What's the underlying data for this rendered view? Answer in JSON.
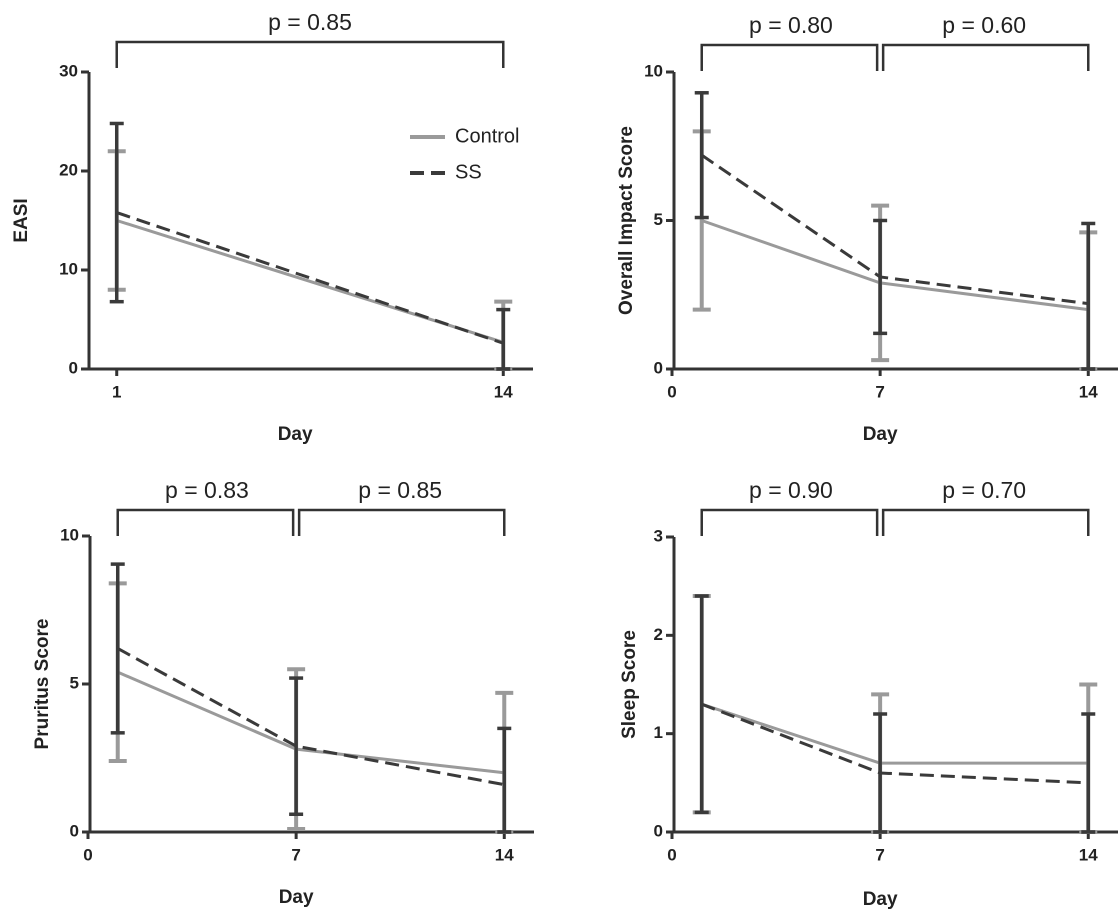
{
  "chart_data": [
    {
      "type": "line",
      "xlabel": "Day",
      "ylabel": "EASI",
      "xlim": [
        0,
        15
      ],
      "ylim": [
        0,
        30
      ],
      "xticks": [
        1,
        14
      ],
      "yticks": [
        0,
        10,
        20,
        30
      ],
      "legend": "upper right",
      "annotations": [
        {
          "text": "p = 0.85",
          "x": [
            1,
            14
          ]
        }
      ],
      "series": [
        {
          "name": "Control",
          "color": "#9a9a9a",
          "dashed": false,
          "x": [
            1,
            14
          ],
          "values": [
            15,
            2.7
          ],
          "errors": [
            7,
            4.1
          ]
        },
        {
          "name": "SS",
          "color": "#3a3a3a",
          "dashed": true,
          "x": [
            1,
            14
          ],
          "values": [
            15.8,
            2.6
          ],
          "errors": [
            9,
            3.4
          ]
        }
      ]
    },
    {
      "type": "line",
      "xlabel": "Day",
      "ylabel": "Overall Impact Score",
      "xlim": [
        0,
        15
      ],
      "ylim": [
        0,
        10
      ],
      "xticks": [
        0,
        7,
        14
      ],
      "yticks": [
        0,
        5,
        10
      ],
      "annotations": [
        {
          "text": "p = 0.80",
          "x": [
            1,
            7
          ]
        },
        {
          "text": "p = 0.60",
          "x": [
            7,
            14
          ]
        }
      ],
      "series": [
        {
          "color": "#9a9a9a",
          "dashed": false,
          "x": [
            1,
            7,
            14
          ],
          "values": [
            5.0,
            2.9,
            2.0
          ],
          "errors": [
            3.0,
            2.6,
            2.6
          ]
        },
        {
          "color": "#3a3a3a",
          "dashed": true,
          "x": [
            1,
            7,
            14
          ],
          "values": [
            7.2,
            3.1,
            2.2
          ],
          "errors": [
            2.1,
            1.9,
            2.7
          ]
        }
      ]
    },
    {
      "type": "line",
      "xlabel": "Day",
      "ylabel": "Pruritus Score",
      "xlim": [
        0,
        15
      ],
      "ylim": [
        0,
        10
      ],
      "xticks": [
        0,
        7,
        14
      ],
      "yticks": [
        0,
        5,
        10
      ],
      "annotations": [
        {
          "text": "p = 0.83",
          "x": [
            1,
            7
          ]
        },
        {
          "text": "p = 0.85",
          "x": [
            7,
            14
          ]
        }
      ],
      "series": [
        {
          "color": "#9a9a9a",
          "dashed": false,
          "x": [
            1,
            7,
            14
          ],
          "values": [
            5.4,
            2.8,
            2.0
          ],
          "errors": [
            3.0,
            2.7,
            2.7
          ]
        },
        {
          "color": "#3a3a3a",
          "dashed": true,
          "x": [
            1,
            7,
            14
          ],
          "values": [
            6.2,
            2.9,
            1.6
          ],
          "errors": [
            2.85,
            2.3,
            1.9
          ]
        }
      ]
    },
    {
      "type": "line",
      "xlabel": "Day",
      "ylabel": "Sleep Score",
      "xlim": [
        0,
        15
      ],
      "ylim": [
        0,
        3
      ],
      "xticks": [
        0,
        7,
        14
      ],
      "yticks": [
        0,
        1,
        2,
        3
      ],
      "annotations": [
        {
          "text": "p = 0.90",
          "x": [
            1,
            7
          ]
        },
        {
          "text": "p = 0.70",
          "x": [
            7,
            14
          ]
        }
      ],
      "series": [
        {
          "color": "#9a9a9a",
          "dashed": false,
          "x": [
            1,
            7,
            14
          ],
          "values": [
            1.3,
            0.7,
            0.7
          ],
          "errors": [
            1.1,
            0.7,
            0.8
          ]
        },
        {
          "color": "#3a3a3a",
          "dashed": true,
          "x": [
            1,
            7,
            14
          ],
          "values": [
            1.3,
            0.6,
            0.5
          ],
          "errors": [
            1.1,
            0.6,
            0.7
          ]
        }
      ]
    }
  ]
}
